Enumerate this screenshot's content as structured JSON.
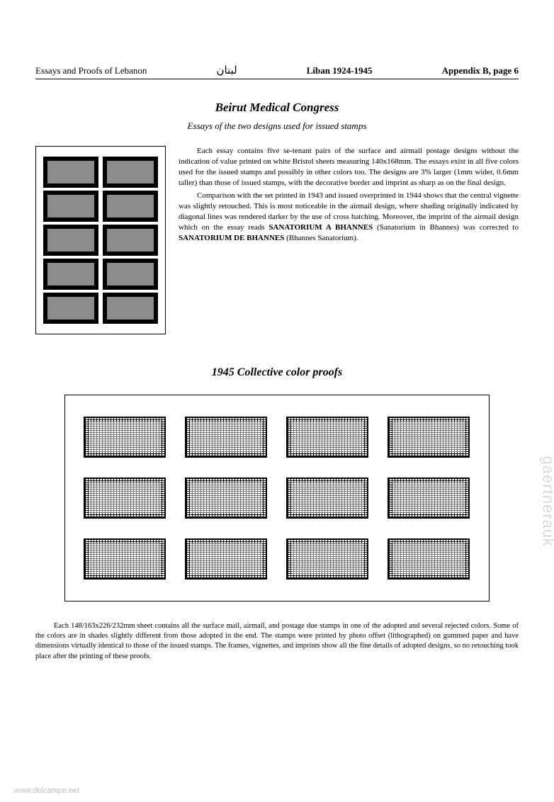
{
  "header": {
    "left": "Essays and Proofs of Lebanon",
    "arabic": "لبنان",
    "mid": "Liban 1924-1945",
    "right": "Appendix B,  page 6"
  },
  "section1": {
    "title": "Beirut Medical Congress",
    "subtitle": "Essays of the two designs used for issued stamps",
    "para1": "Each essay contains five se-tenant pairs of the surface and airmail postage designs without the indication of value printed on white Bristol sheets measuring 140x168mm. The essays exist in all five colors used for the issued stamps and possibly in other colors too. The designs are 3% larger (1mm wider, 0.6mm taller) than those of issued stamps, with the decorative border and imprint as sharp as on the final design.",
    "para2a": "Comparison with the set printed in 1943 and issued overprinted in 1944 shows that the central vignette was slightly retouched. This is most noticeable in the airmail design, where shading originally indicated by diagonal lines was rendered darker by the use of cross hatching. Moreover, the imprint of the airmail design which on the essay reads ",
    "para2b": "SANATORIUM A BHANNES",
    "para2c": " (Sanatorium in Bhannes) was corrected to ",
    "para2d": "SANATORIUM DE BHANNES",
    "para2e": " (Bhannes Sanatorium).",
    "stampGrid": {
      "rows": 5,
      "cols": 2
    }
  },
  "section2": {
    "title": "1945 Collective color proofs",
    "stampGrid": {
      "rows": 3,
      "cols": 4
    },
    "footer": "Each 148/163x226/232mm sheet contains all the surface mail, airmail, and postage due stamps in one of the adopted and several rejected colors. Some of the colors are in shades slightly different from those adopted in the end. The stamps were printed by photo offset (lithographed) on gummed paper and have dimensions virtually identical to those of the issued stamps. The frames, vignettes, and imprints show all the fine details of adopted designs, so no retouching took place after the printing of these proofs."
  },
  "watermark": {
    "side": "gaertnerauk",
    "bottom": "www.delcampe.net"
  },
  "colors": {
    "text": "#000000",
    "background": "#ffffff",
    "watermark": "#d9d9d9",
    "watermark2": "#bfbfbf"
  }
}
